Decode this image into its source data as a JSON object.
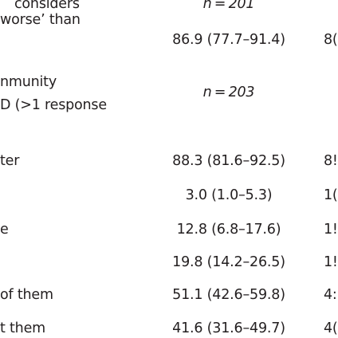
{
  "table": {
    "labels": [
      "considers",
      "worse’ than",
      "nmunity",
      "D (>1 response",
      "ter",
      "e",
      "of them",
      "t them"
    ],
    "sample_sizes": [
      "n = 201",
      "n = 203"
    ],
    "values": [
      "86.9 (77.7–91.4)",
      "88.3 (81.6–92.5)",
      "3.0 (1.0–5.3)",
      "12.8 (6.8–17.6)",
      "19.8 (14.2–26.5)",
      "51.1 (42.6–59.8)",
      "41.6 (31.6–49.7)"
    ],
    "cut_column": [
      "8(",
      "8!",
      "1(",
      "1!",
      "1!",
      "4:",
      "4("
    ]
  }
}
